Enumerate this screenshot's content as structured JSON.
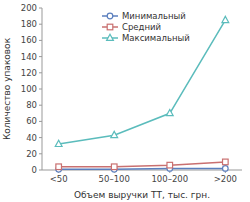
{
  "chart_data": {
    "type": "line",
    "categories": [
      "<50",
      "50–100",
      "100–200",
      ">200"
    ],
    "series": [
      {
        "name": "Минимальный",
        "color": "#5b7fbe",
        "marker": "circle",
        "values": [
          1,
          1,
          2,
          2
        ]
      },
      {
        "name": "Средний",
        "color": "#c97070",
        "marker": "square",
        "values": [
          4,
          4,
          6,
          10
        ]
      },
      {
        "name": "Максимальный",
        "color": "#5bbcbc",
        "marker": "triangle",
        "values": [
          32,
          43,
          70,
          185
        ]
      }
    ],
    "x_label": "Объем выручки ТТ, тыс. грн.",
    "y_label": "Количество упаковок",
    "ylim": [
      0,
      200
    ],
    "yticks": [
      0,
      20,
      40,
      60,
      80,
      100,
      120,
      140,
      160,
      180,
      200
    ],
    "grid": false,
    "legend": "upper left"
  }
}
